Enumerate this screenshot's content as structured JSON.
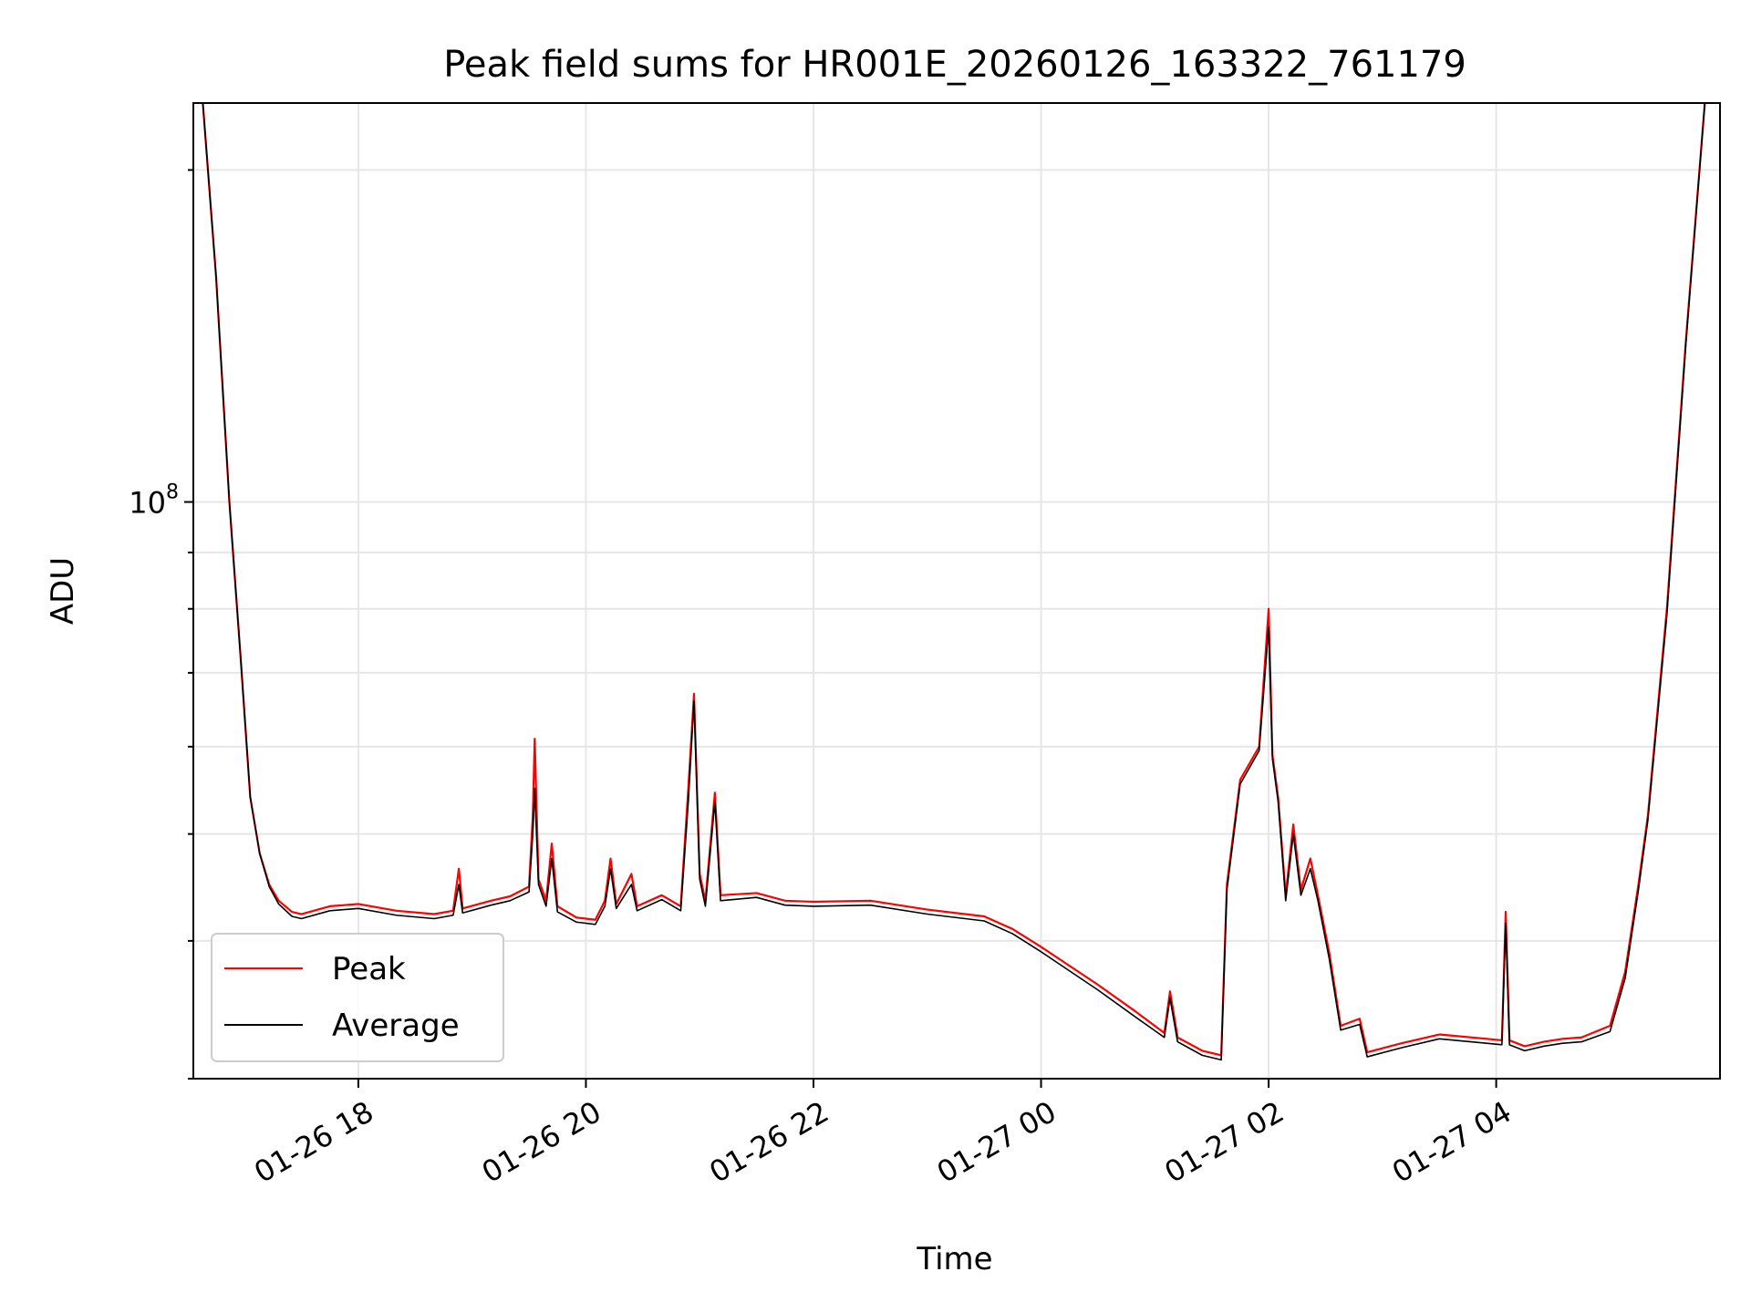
{
  "chart_data": {
    "type": "line",
    "title": "Peak field sums for HR001E_20260126_163322_761179",
    "xlabel": "Time",
    "ylabel": "ADU",
    "yscale": "log",
    "grid": true,
    "legend_placement": "lower-left",
    "xlim": [
      "2026-01-26 16:33",
      "2026-01-27 05:58"
    ],
    "ylim": [
      30000000,
      230000000
    ],
    "x_tick_labels": [
      "01-26 18",
      "01-26 20",
      "01-26 22",
      "01-27 00",
      "01-27 02",
      "01-27 04"
    ],
    "x_tick_values": [
      "2026-01-26 18:00",
      "2026-01-26 20:00",
      "2026-01-26 22:00",
      "2026-01-27 00:00",
      "2026-01-27 02:00",
      "2026-01-27 04:00"
    ],
    "y_tick_labels": [
      {
        "base": "10",
        "exp": "8",
        "value": 100000000
      }
    ],
    "series": [
      {
        "name": "Peak",
        "color": "#ff0000",
        "points": [
          [
            "2026-01-26 16:38",
            230000000
          ],
          [
            "2026-01-26 16:45",
            160000000
          ],
          [
            "2026-01-26 16:52",
            100000000
          ],
          [
            "2026-01-26 16:58",
            72000000
          ],
          [
            "2026-01-26 17:03",
            54000000
          ],
          [
            "2026-01-26 17:08",
            48000000
          ],
          [
            "2026-01-26 17:13",
            45000000
          ],
          [
            "2026-01-26 17:18",
            43500000
          ],
          [
            "2026-01-26 17:25",
            42500000
          ],
          [
            "2026-01-26 17:30",
            42300000
          ],
          [
            "2026-01-26 17:45",
            43000000
          ],
          [
            "2026-01-26 18:00",
            43200000
          ],
          [
            "2026-01-26 18:20",
            42600000
          ],
          [
            "2026-01-26 18:40",
            42300000
          ],
          [
            "2026-01-26 18:50",
            42600000
          ],
          [
            "2026-01-26 18:53",
            46500000
          ],
          [
            "2026-01-26 18:55",
            42800000
          ],
          [
            "2026-01-26 19:10",
            43500000
          ],
          [
            "2026-01-26 19:20",
            43900000
          ],
          [
            "2026-01-26 19:30",
            44800000
          ],
          [
            "2026-01-26 19:32",
            52000000
          ],
          [
            "2026-01-26 19:33",
            61000000
          ],
          [
            "2026-01-26 19:35",
            45500000
          ],
          [
            "2026-01-26 19:39",
            43500000
          ],
          [
            "2026-01-26 19:42",
            49000000
          ],
          [
            "2026-01-26 19:45",
            43000000
          ],
          [
            "2026-01-26 19:55",
            42000000
          ],
          [
            "2026-01-26 20:05",
            41800000
          ],
          [
            "2026-01-26 20:10",
            43500000
          ],
          [
            "2026-01-26 20:13",
            47500000
          ],
          [
            "2026-01-26 20:16",
            43200000
          ],
          [
            "2026-01-26 20:24",
            46000000
          ],
          [
            "2026-01-26 20:27",
            43000000
          ],
          [
            "2026-01-26 20:40",
            44000000
          ],
          [
            "2026-01-26 20:50",
            43000000
          ],
          [
            "2026-01-26 20:54",
            55000000
          ],
          [
            "2026-01-26 20:57",
            67000000
          ],
          [
            "2026-01-26 21:00",
            46000000
          ],
          [
            "2026-01-26 21:03",
            43500000
          ],
          [
            "2026-01-26 21:08",
            54500000
          ],
          [
            "2026-01-26 21:11",
            44000000
          ],
          [
            "2026-01-26 21:30",
            44200000
          ],
          [
            "2026-01-26 21:45",
            43500000
          ],
          [
            "2026-01-26 22:00",
            43400000
          ],
          [
            "2026-01-26 22:30",
            43500000
          ],
          [
            "2026-01-26 23:00",
            42700000
          ],
          [
            "2026-01-26 23:30",
            42100000
          ],
          [
            "2026-01-26 23:45",
            41000000
          ],
          [
            "2026-01-27 00:00",
            39500000
          ],
          [
            "2026-01-27 00:30",
            36500000
          ],
          [
            "2026-01-27 00:50",
            34500000
          ],
          [
            "2026-01-27 01:05",
            33000000
          ],
          [
            "2026-01-27 01:08",
            36000000
          ],
          [
            "2026-01-27 01:12",
            32700000
          ],
          [
            "2026-01-27 01:25",
            31800000
          ],
          [
            "2026-01-27 01:35",
            31500000
          ],
          [
            "2026-01-27 01:38",
            45000000
          ],
          [
            "2026-01-27 01:45",
            56000000
          ],
          [
            "2026-01-27 01:55",
            60000000
          ],
          [
            "2026-01-27 02:00",
            80000000
          ],
          [
            "2026-01-27 02:02",
            59000000
          ],
          [
            "2026-01-27 02:05",
            54000000
          ],
          [
            "2026-01-27 02:09",
            44000000
          ],
          [
            "2026-01-27 02:13",
            51000000
          ],
          [
            "2026-01-27 02:17",
            44500000
          ],
          [
            "2026-01-27 02:22",
            47500000
          ],
          [
            "2026-01-27 02:26",
            44000000
          ],
          [
            "2026-01-27 02:32",
            39000000
          ],
          [
            "2026-01-27 02:38",
            33500000
          ],
          [
            "2026-01-27 02:48",
            34000000
          ],
          [
            "2026-01-27 02:52",
            31700000
          ],
          [
            "2026-01-27 03:10",
            32300000
          ],
          [
            "2026-01-27 03:30",
            32900000
          ],
          [
            "2026-01-27 03:55",
            32600000
          ],
          [
            "2026-01-27 04:03",
            32500000
          ],
          [
            "2026-01-27 04:05",
            42500000
          ],
          [
            "2026-01-27 04:07",
            32500000
          ],
          [
            "2026-01-27 04:15",
            32100000
          ],
          [
            "2026-01-27 04:25",
            32400000
          ],
          [
            "2026-01-27 04:35",
            32600000
          ],
          [
            "2026-01-27 04:45",
            32700000
          ],
          [
            "2026-01-27 05:00",
            33500000
          ],
          [
            "2026-01-27 05:08",
            37500000
          ],
          [
            "2026-01-27 05:15",
            45000000
          ],
          [
            "2026-01-27 05:20",
            52000000
          ],
          [
            "2026-01-27 05:30",
            80000000
          ],
          [
            "2026-01-27 05:40",
            140000000
          ],
          [
            "2026-01-27 05:50",
            230000000
          ]
        ]
      },
      {
        "name": "Average",
        "color": "#000000",
        "points": [
          [
            "2026-01-26 16:38",
            230000000
          ],
          [
            "2026-01-26 16:45",
            160000000
          ],
          [
            "2026-01-26 16:52",
            100000000
          ],
          [
            "2026-01-26 16:58",
            72000000
          ],
          [
            "2026-01-26 17:03",
            54000000
          ],
          [
            "2026-01-26 17:08",
            48000000
          ],
          [
            "2026-01-26 17:13",
            44800000
          ],
          [
            "2026-01-26 17:18",
            43200000
          ],
          [
            "2026-01-26 17:25",
            42100000
          ],
          [
            "2026-01-26 17:30",
            41900000
          ],
          [
            "2026-01-26 17:45",
            42600000
          ],
          [
            "2026-01-26 18:00",
            42800000
          ],
          [
            "2026-01-26 18:20",
            42200000
          ],
          [
            "2026-01-26 18:40",
            41900000
          ],
          [
            "2026-01-26 18:50",
            42200000
          ],
          [
            "2026-01-26 18:53",
            45000000
          ],
          [
            "2026-01-26 18:55",
            42400000
          ],
          [
            "2026-01-26 19:10",
            43100000
          ],
          [
            "2026-01-26 19:20",
            43500000
          ],
          [
            "2026-01-26 19:30",
            44300000
          ],
          [
            "2026-01-26 19:32",
            50000000
          ],
          [
            "2026-01-26 19:33",
            55000000
          ],
          [
            "2026-01-26 19:35",
            45000000
          ],
          [
            "2026-01-26 19:39",
            43000000
          ],
          [
            "2026-01-26 19:42",
            47500000
          ],
          [
            "2026-01-26 19:45",
            42500000
          ],
          [
            "2026-01-26 19:55",
            41600000
          ],
          [
            "2026-01-26 20:05",
            41400000
          ],
          [
            "2026-01-26 20:10",
            43000000
          ],
          [
            "2026-01-26 20:13",
            46500000
          ],
          [
            "2026-01-26 20:16",
            42800000
          ],
          [
            "2026-01-26 20:24",
            45000000
          ],
          [
            "2026-01-26 20:27",
            42600000
          ],
          [
            "2026-01-26 20:40",
            43600000
          ],
          [
            "2026-01-26 20:50",
            42600000
          ],
          [
            "2026-01-26 20:54",
            53500000
          ],
          [
            "2026-01-26 20:57",
            66000000
          ],
          [
            "2026-01-26 21:00",
            45500000
          ],
          [
            "2026-01-26 21:03",
            43000000
          ],
          [
            "2026-01-26 21:08",
            53500000
          ],
          [
            "2026-01-26 21:11",
            43500000
          ],
          [
            "2026-01-26 21:30",
            43800000
          ],
          [
            "2026-01-26 21:45",
            43100000
          ],
          [
            "2026-01-26 22:00",
            43000000
          ],
          [
            "2026-01-26 22:30",
            43100000
          ],
          [
            "2026-01-26 23:00",
            42300000
          ],
          [
            "2026-01-26 23:30",
            41700000
          ],
          [
            "2026-01-26 23:45",
            40600000
          ],
          [
            "2026-01-27 00:00",
            39100000
          ],
          [
            "2026-01-27 00:30",
            36100000
          ],
          [
            "2026-01-27 00:50",
            34100000
          ],
          [
            "2026-01-27 01:05",
            32700000
          ],
          [
            "2026-01-27 01:08",
            35500000
          ],
          [
            "2026-01-27 01:12",
            32400000
          ],
          [
            "2026-01-27 01:25",
            31500000
          ],
          [
            "2026-01-27 01:35",
            31200000
          ],
          [
            "2026-01-27 01:38",
            44500000
          ],
          [
            "2026-01-27 01:45",
            55500000
          ],
          [
            "2026-01-27 01:55",
            59500000
          ],
          [
            "2026-01-27 02:00",
            77000000
          ],
          [
            "2026-01-27 02:02",
            58500000
          ],
          [
            "2026-01-27 02:05",
            53500000
          ],
          [
            "2026-01-27 02:09",
            43500000
          ],
          [
            "2026-01-27 02:13",
            50000000
          ],
          [
            "2026-01-27 02:17",
            44000000
          ],
          [
            "2026-01-27 02:22",
            46500000
          ],
          [
            "2026-01-27 02:26",
            43500000
          ],
          [
            "2026-01-27 02:32",
            38500000
          ],
          [
            "2026-01-27 02:38",
            33200000
          ],
          [
            "2026-01-27 02:48",
            33600000
          ],
          [
            "2026-01-27 02:52",
            31400000
          ],
          [
            "2026-01-27 03:10",
            32000000
          ],
          [
            "2026-01-27 03:30",
            32600000
          ],
          [
            "2026-01-27 03:55",
            32300000
          ],
          [
            "2026-01-27 04:03",
            32200000
          ],
          [
            "2026-01-27 04:05",
            41500000
          ],
          [
            "2026-01-27 04:07",
            32200000
          ],
          [
            "2026-01-27 04:15",
            31800000
          ],
          [
            "2026-01-27 04:25",
            32100000
          ],
          [
            "2026-01-27 04:35",
            32300000
          ],
          [
            "2026-01-27 04:45",
            32400000
          ],
          [
            "2026-01-27 05:00",
            33100000
          ],
          [
            "2026-01-27 05:08",
            37000000
          ],
          [
            "2026-01-27 05:15",
            44500000
          ],
          [
            "2026-01-27 05:20",
            51500000
          ],
          [
            "2026-01-27 05:30",
            79000000
          ],
          [
            "2026-01-27 05:40",
            139000000
          ],
          [
            "2026-01-27 05:50",
            230000000
          ]
        ]
      }
    ]
  }
}
